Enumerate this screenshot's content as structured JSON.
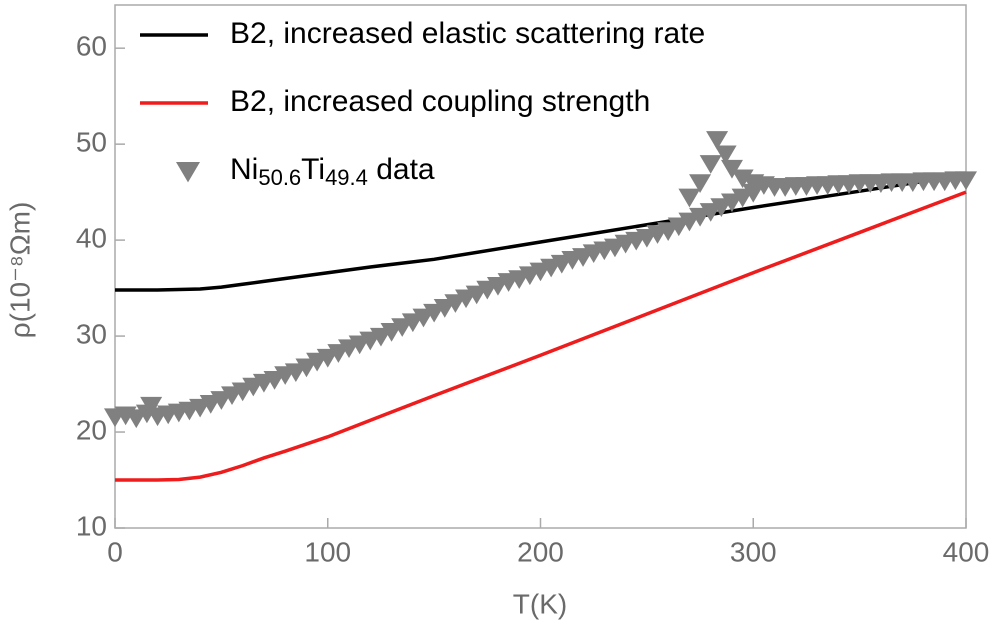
{
  "chart_data": {
    "type": "line",
    "xlabel": "T(K)",
    "ylabel": "ρ(10⁻⁸Ωm)",
    "xlim": [
      0,
      400
    ],
    "xticks": [
      0,
      100,
      200,
      300,
      400
    ],
    "ylim": [
      10,
      64.5
    ],
    "yticks": [
      10,
      20,
      30,
      40,
      50,
      60
    ],
    "legend": "upper left",
    "series": [
      {
        "name": "B2, increased elastic scattering rate",
        "color": "#000000",
        "marker": "none",
        "x": [
          0,
          20,
          40,
          50,
          60,
          70,
          80,
          100,
          120,
          150,
          200,
          250,
          300,
          350,
          400
        ],
        "values": [
          34.8,
          34.8,
          34.9,
          35.1,
          35.4,
          35.7,
          36.0,
          36.6,
          37.2,
          38.0,
          39.8,
          41.6,
          43.4,
          45.1,
          46.8
        ]
      },
      {
        "name": "B2, increased coupling strength",
        "color": "#ee1c1c",
        "marker": "none",
        "x": [
          0,
          20,
          30,
          40,
          50,
          60,
          70,
          80,
          100,
          150,
          200,
          250,
          300,
          350,
          400
        ],
        "values": [
          15.0,
          15.0,
          15.05,
          15.3,
          15.8,
          16.5,
          17.3,
          18.0,
          19.5,
          23.8,
          28.0,
          32.3,
          36.6,
          40.8,
          45.0
        ]
      },
      {
        "name": "Ni50.6Ti49.4 data",
        "color": "#808080",
        "marker": "triangle-down",
        "x": [
          0,
          5,
          10,
          15,
          17,
          20,
          25,
          30,
          35,
          40,
          45,
          50,
          55,
          60,
          65,
          70,
          75,
          80,
          85,
          90,
          95,
          100,
          105,
          110,
          115,
          120,
          125,
          130,
          135,
          140,
          145,
          150,
          155,
          160,
          165,
          170,
          175,
          180,
          185,
          190,
          195,
          200,
          205,
          210,
          215,
          220,
          225,
          230,
          235,
          240,
          245,
          250,
          255,
          260,
          265,
          270,
          275,
          280,
          285,
          290,
          295,
          300,
          270,
          275,
          280,
          283,
          287,
          290,
          295,
          300,
          305,
          310,
          315,
          320,
          325,
          330,
          335,
          340,
          345,
          350,
          355,
          360,
          365,
          370,
          375,
          380,
          385,
          390,
          395,
          400
        ],
        "values": [
          21.6,
          21.8,
          21.5,
          22.0,
          22.8,
          21.7,
          21.9,
          22.1,
          22.3,
          22.6,
          23.0,
          23.4,
          23.9,
          24.3,
          24.8,
          25.2,
          25.5,
          26.0,
          26.3,
          26.8,
          27.4,
          27.8,
          28.3,
          28.8,
          29.2,
          29.6,
          30.0,
          30.5,
          31.0,
          31.5,
          32.0,
          32.5,
          33.0,
          33.5,
          34.0,
          34.4,
          34.9,
          35.3,
          35.7,
          36.0,
          36.4,
          36.8,
          37.2,
          37.6,
          38.0,
          38.3,
          38.7,
          39.0,
          39.3,
          39.7,
          40.0,
          40.3,
          40.7,
          41.0,
          41.5,
          42.0,
          42.5,
          43.0,
          43.5,
          44.0,
          44.5,
          45.0,
          44.5,
          46.0,
          48.0,
          50.5,
          49.0,
          47.5,
          46.5,
          46.0,
          45.8,
          45.6,
          45.6,
          45.7,
          45.7,
          45.8,
          45.8,
          45.9,
          45.9,
          46.0,
          46.0,
          46.0,
          46.1,
          46.1,
          46.1,
          46.2,
          46.2,
          46.2,
          46.3,
          46.3
        ]
      }
    ]
  }
}
